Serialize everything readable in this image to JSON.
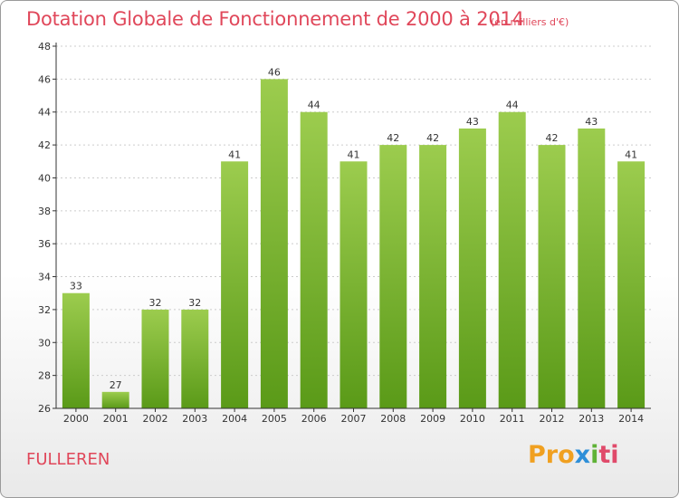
{
  "chart_data": {
    "type": "bar",
    "title": "Dotation Globale de Fonctionnement de 2000 à 2014",
    "subtitle": "(en milliers d'€)",
    "categories": [
      "2000",
      "2001",
      "2002",
      "2003",
      "2004",
      "2005",
      "2006",
      "2007",
      "2008",
      "2009",
      "2010",
      "2011",
      "2012",
      "2013",
      "2014"
    ],
    "values": [
      33,
      27,
      32,
      32,
      41,
      46,
      44,
      41,
      42,
      42,
      43,
      44,
      42,
      43,
      41
    ],
    "ylim": [
      26,
      48
    ],
    "yticks": [
      26,
      28,
      30,
      32,
      34,
      36,
      38,
      40,
      42,
      44,
      46,
      48
    ],
    "xlabel": "",
    "ylabel": "",
    "grid": "horizontal-dotted",
    "bar_color_top": "#9ccc4e",
    "bar_color_bottom": "#5a9a18"
  },
  "footer": {
    "commune": "FULLEREN",
    "logo_parts": [
      "Pro",
      "x",
      "i",
      "ti"
    ]
  },
  "colors": {
    "title": "#e0475a",
    "axis": "#333333",
    "grid": "#cccccc"
  }
}
